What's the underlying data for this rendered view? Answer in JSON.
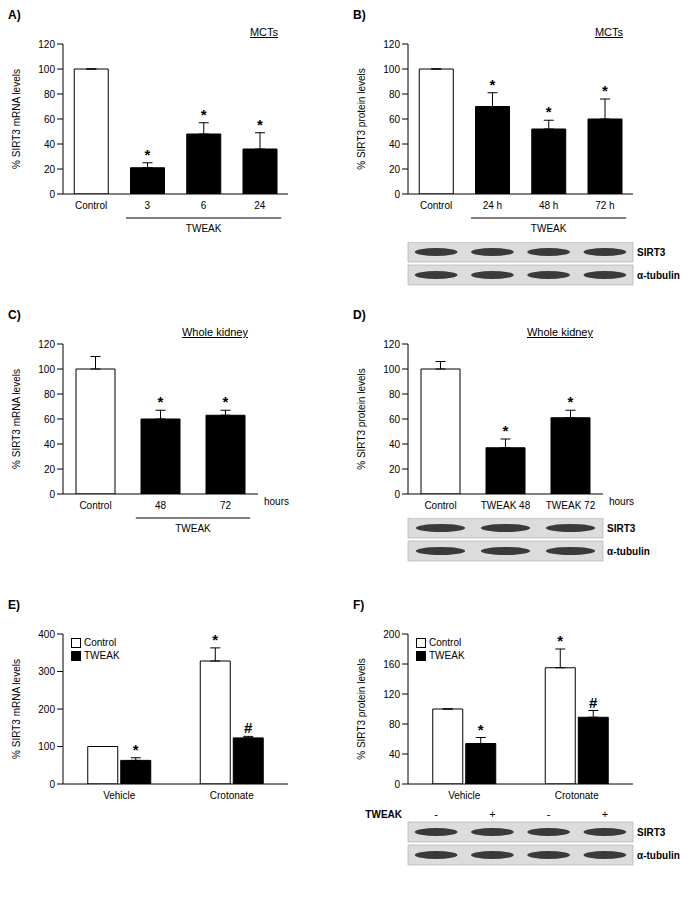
{
  "chart_data": [
    {
      "type": "bar",
      "title": "A)",
      "annotation": "MCTs",
      "y_label": "% SIRT3 mRNA levels",
      "categories": [
        "Control",
        "3",
        "6",
        "24"
      ],
      "groups": [
        null,
        "TWEAK",
        "TWEAK",
        "TWEAK"
      ],
      "values": [
        100,
        21,
        48,
        36
      ],
      "errors": [
        0,
        4,
        9,
        13
      ],
      "significance": [
        null,
        "*",
        "*",
        "*"
      ],
      "colors": [
        "#ffffff",
        "#000000",
        "#000000",
        "#000000"
      ],
      "ylim": [
        0,
        120
      ],
      "yticks": [
        0,
        20,
        40,
        60,
        80,
        100,
        120
      ],
      "grid": false
    },
    {
      "type": "bar",
      "title": "B)",
      "annotation": "MCTs",
      "y_label": "% SIRT3 protein levels",
      "categories": [
        "Control",
        "24 h",
        "48 h",
        "72 h"
      ],
      "groups": [
        null,
        "TWEAK",
        "TWEAK",
        "TWEAK"
      ],
      "values": [
        100,
        70,
        52,
        60
      ],
      "errors": [
        0,
        11,
        7,
        16
      ],
      "significance": [
        null,
        "*",
        "*",
        "*"
      ],
      "colors": [
        "#ffffff",
        "#000000",
        "#000000",
        "#000000"
      ],
      "ylim": [
        0,
        120
      ],
      "yticks": [
        0,
        20,
        40,
        60,
        80,
        100,
        120
      ],
      "grid": false,
      "blot": {
        "rows": [
          "SIRT3",
          "α-tubulin"
        ]
      }
    },
    {
      "type": "bar",
      "title": "C)",
      "annotation": "Whole kidney",
      "y_label": "% SIRT3 mRNA levels",
      "x_label": "hours",
      "categories": [
        "Control",
        "48",
        "72"
      ],
      "groups": [
        null,
        "TWEAK",
        "TWEAK"
      ],
      "values": [
        100,
        60,
        63
      ],
      "errors": [
        10,
        7,
        4
      ],
      "significance": [
        null,
        "*",
        "*"
      ],
      "colors": [
        "#ffffff",
        "#000000",
        "#000000"
      ],
      "ylim": [
        0,
        120
      ],
      "yticks": [
        0,
        20,
        40,
        60,
        80,
        100,
        120
      ],
      "grid": false
    },
    {
      "type": "bar",
      "title": "D)",
      "annotation": "Whole kidney",
      "y_label": "% SIRT3 protein levels",
      "x_label": "hours",
      "categories": [
        "Control",
        "TWEAK 48",
        "TWEAK 72"
      ],
      "values": [
        100,
        37,
        61
      ],
      "errors": [
        6,
        7,
        6
      ],
      "significance": [
        null,
        "*",
        "*"
      ],
      "colors": [
        "#ffffff",
        "#000000",
        "#000000"
      ],
      "ylim": [
        0,
        120
      ],
      "yticks": [
        0,
        20,
        40,
        60,
        80,
        100,
        120
      ],
      "grid": false,
      "blot": {
        "rows": [
          "SIRT3",
          "α-tubulin"
        ]
      }
    },
    {
      "type": "bar",
      "title": "E)",
      "y_label": "% SIRT3 mRNA levels",
      "categories": [
        "Vehicle",
        "Crotonate"
      ],
      "series": [
        {
          "name": "Control",
          "color": "#ffffff",
          "values": [
            100,
            328
          ],
          "errors": [
            0,
            35
          ],
          "significance": [
            null,
            "*"
          ]
        },
        {
          "name": "TWEAK",
          "color": "#000000",
          "values": [
            63,
            123
          ],
          "errors": [
            7,
            4
          ],
          "significance": [
            "*",
            "#"
          ]
        }
      ],
      "legend": "top-left",
      "ylim": [
        0,
        400
      ],
      "yticks": [
        0,
        100,
        200,
        300,
        400
      ],
      "grid": false
    },
    {
      "type": "bar",
      "title": "F)",
      "y_label": "% SIRT3 protein levels",
      "categories": [
        "Vehicle",
        "Crotonate"
      ],
      "series": [
        {
          "name": "Control",
          "color": "#ffffff",
          "values": [
            100,
            155
          ],
          "errors": [
            0,
            25
          ],
          "significance": [
            null,
            "*"
          ]
        },
        {
          "name": "TWEAK",
          "color": "#000000",
          "values": [
            54,
            89
          ],
          "errors": [
            8,
            9
          ],
          "significance": [
            "*",
            "#"
          ]
        }
      ],
      "legend": "top-left",
      "ylim": [
        0,
        200
      ],
      "yticks": [
        0,
        40,
        80,
        120,
        160,
        200
      ],
      "grid": false,
      "blot": {
        "treatment": {
          "label": "TWEAK",
          "signs": [
            "-",
            "+",
            "-",
            "+"
          ]
        },
        "rows": [
          "SIRT3",
          "α-tubulin"
        ]
      }
    }
  ]
}
